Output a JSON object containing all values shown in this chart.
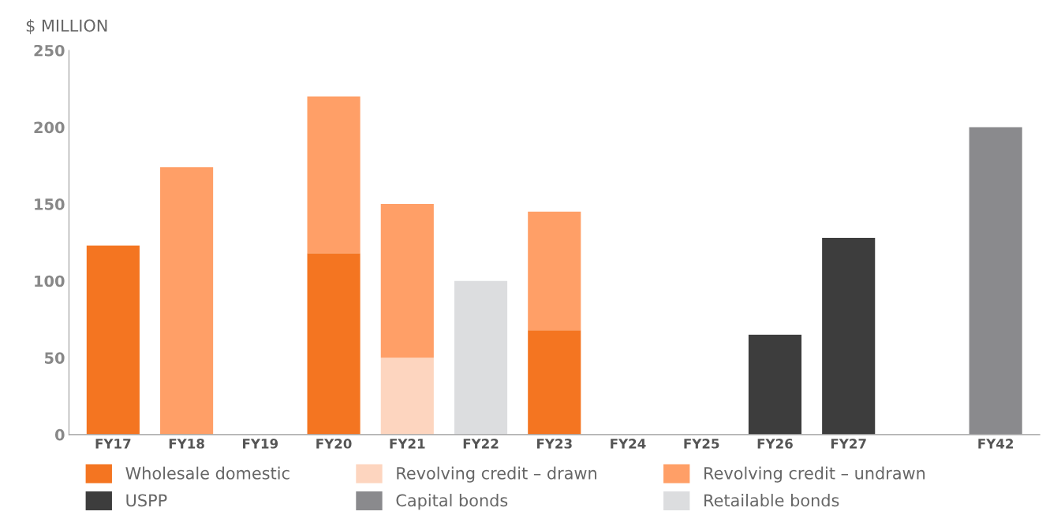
{
  "chart_data": {
    "type": "bar",
    "stacked": true,
    "ylabel": "$ MILLION",
    "categories": [
      "FY17",
      "FY18",
      "FY19",
      "FY20",
      "FY21",
      "FY22",
      "FY23",
      "FY24",
      "FY25",
      "FY26",
      "FY27",
      null,
      "FY42"
    ],
    "series": [
      {
        "name": "Wholesale domestic",
        "color": "#f47521",
        "values": [
          123,
          null,
          null,
          118,
          null,
          null,
          68,
          null,
          null,
          null,
          null,
          null,
          null
        ]
      },
      {
        "name": "Revolving credit – drawn",
        "color": "#fdd5bf",
        "values": [
          null,
          null,
          null,
          null,
          50,
          null,
          null,
          null,
          null,
          null,
          null,
          null,
          null
        ]
      },
      {
        "name": "Revolving credit – undrawn",
        "color": "#ff9f67",
        "values": [
          null,
          174,
          null,
          102,
          100,
          null,
          77,
          null,
          null,
          null,
          null,
          null,
          null
        ]
      },
      {
        "name": "USPP",
        "color": "#3d3d3d",
        "values": [
          null,
          null,
          null,
          null,
          null,
          null,
          null,
          null,
          null,
          65,
          128,
          null,
          null
        ]
      },
      {
        "name": "Capital bonds",
        "color": "#8a8a8d",
        "values": [
          null,
          null,
          null,
          null,
          null,
          null,
          null,
          null,
          null,
          null,
          null,
          null,
          200
        ]
      },
      {
        "name": "Retailable bonds",
        "color": "#dcdddf",
        "values": [
          null,
          null,
          null,
          null,
          null,
          100,
          null,
          null,
          null,
          null,
          null,
          null,
          null
        ]
      }
    ],
    "ylim": [
      0,
      250
    ],
    "yticks": [
      0,
      50,
      100,
      150,
      200,
      250
    ],
    "grid": false,
    "legend": "bottom"
  }
}
